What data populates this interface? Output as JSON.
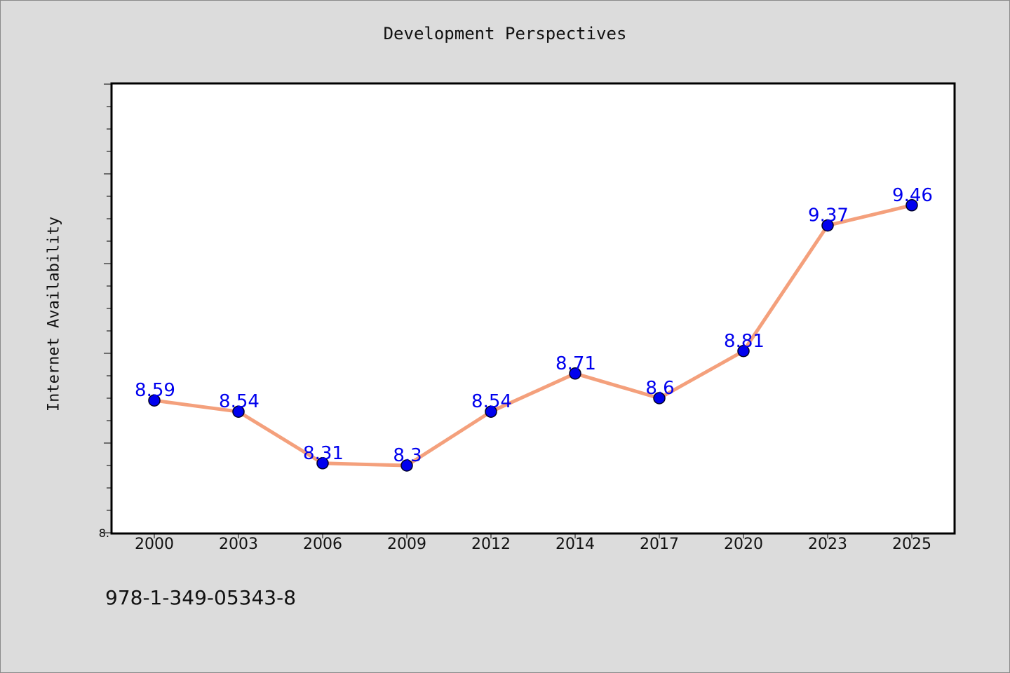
{
  "chart_data": {
    "type": "line",
    "title": "Development Perspectives",
    "xlabel": "",
    "ylabel": "Internet Availability",
    "categories": [
      "2000",
      "2003",
      "2006",
      "2009",
      "2012",
      "2014",
      "2017",
      "2020",
      "2023",
      "2025"
    ],
    "series": [
      {
        "values": [
          8.59,
          8.54,
          8.31,
          8.3,
          8.54,
          8.71,
          8.6,
          8.81,
          9.37,
          9.46
        ],
        "data_labels": [
          "8.59",
          "8.54",
          "8.31",
          "8.3",
          "8.54",
          "8.71",
          "8.6",
          "8.81",
          "9.37",
          "9.46"
        ]
      }
    ],
    "y_tick_labels": [
      "8."
    ],
    "ylim": [
      8.0,
      10.0
    ],
    "grid": false,
    "colors": {
      "line": "#f4a07c",
      "marker": "#0000ee",
      "data_label": "#0000ee",
      "plot_background": "#ffffff",
      "figure_background": "#dcdcdc"
    }
  },
  "footer": {
    "code": "978-1-349-05343-8"
  }
}
